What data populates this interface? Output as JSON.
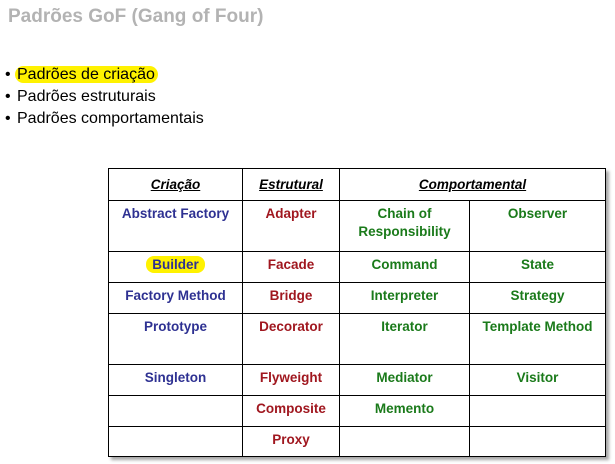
{
  "slide": {
    "title": "Padrões GoF (Gang of Four)",
    "bullets": [
      {
        "text": "Padrões de criação",
        "highlighted": true
      },
      {
        "text": "Padrões estruturais",
        "highlighted": false
      },
      {
        "text": "Padrões comportamentais",
        "highlighted": false
      }
    ],
    "bullet_symbol": "•"
  },
  "table": {
    "headers": {
      "criacao": "Criação",
      "estrutural": "Estrutural",
      "comportamental": "Comportamental"
    },
    "rows": [
      {
        "criacao": "Abstract Factory",
        "estrutural": "Adapter",
        "comp1": "Chain of Responsibility",
        "comp2": "Observer"
      },
      {
        "criacao": "Builder",
        "estrutural": "Facade",
        "comp1": "Command",
        "comp2": "State"
      },
      {
        "criacao": "Factory Method",
        "estrutural": "Bridge",
        "comp1": "Interpreter",
        "comp2": "Strategy"
      },
      {
        "criacao": "Prototype",
        "estrutural": "Decorator",
        "comp1": "Iterator",
        "comp2": "Template Method"
      },
      {
        "criacao": "Singleton",
        "estrutural": "Flyweight",
        "comp1": "Mediator",
        "comp2": "Visitor"
      },
      {
        "criacao": "",
        "estrutural": "Composite",
        "comp1": "Memento",
        "comp2": ""
      },
      {
        "criacao": "",
        "estrutural": "Proxy",
        "comp1": "",
        "comp2": ""
      }
    ],
    "highlighted_cell": "Builder"
  },
  "colors": {
    "title": "#b3b3b3",
    "highlight": "#fff200",
    "criacao": "#2e3192",
    "estrutural": "#a0171f",
    "comportamental": "#1a7a1a"
  }
}
